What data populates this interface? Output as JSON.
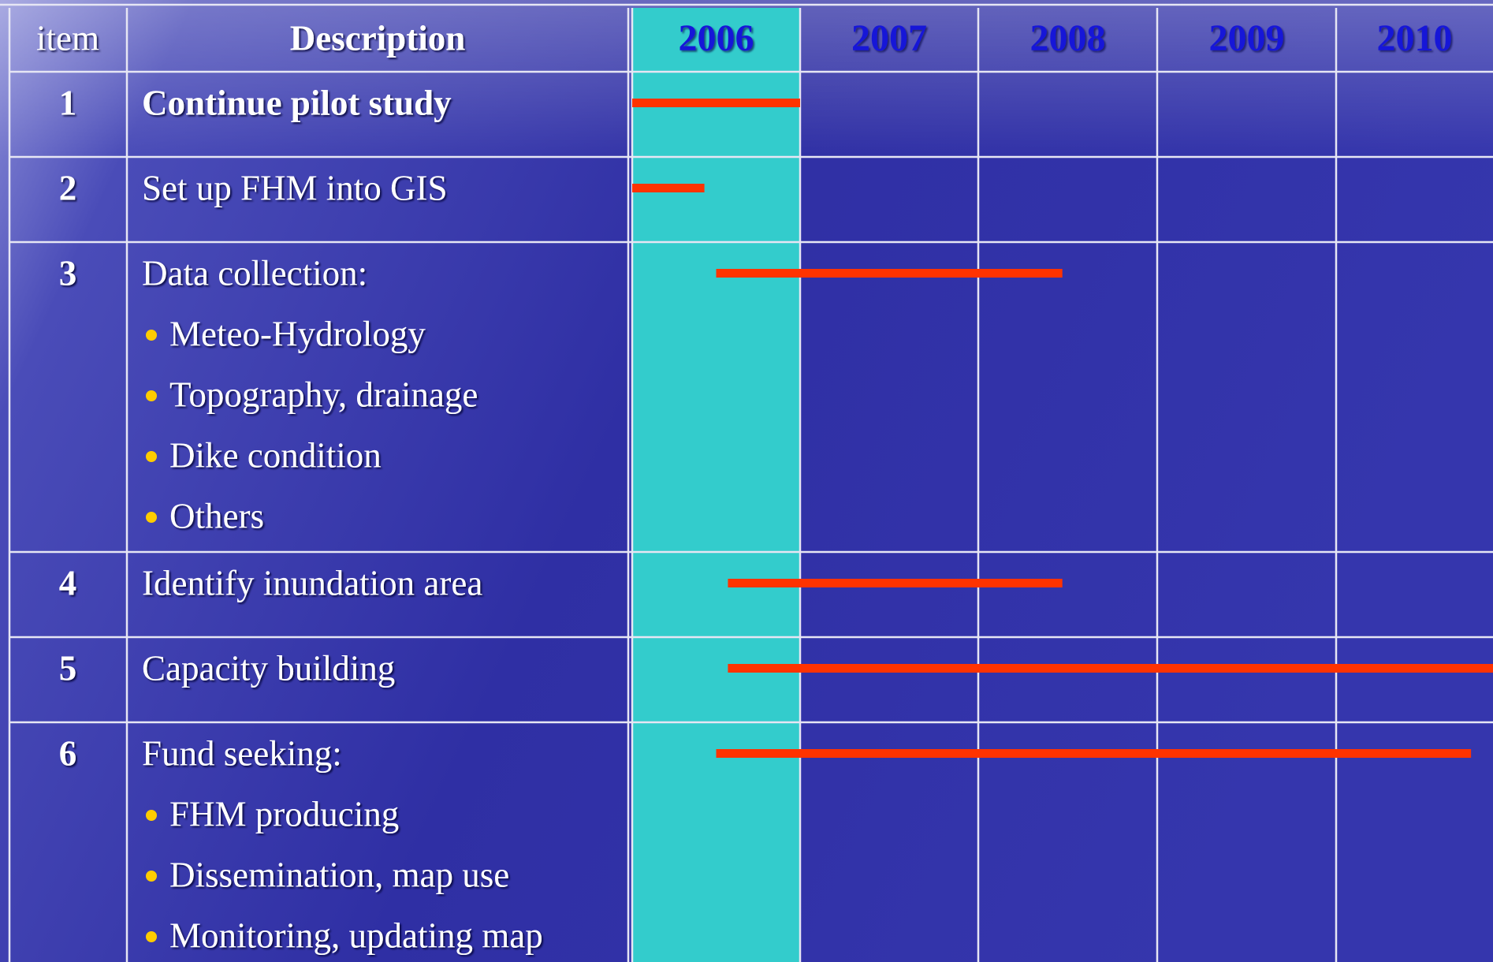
{
  "chart_data": {
    "type": "gantt",
    "item_header": "item",
    "description_header": "Description",
    "items": [
      1,
      2,
      3,
      4,
      5,
      6
    ],
    "descriptions": [
      "Continue pilot study",
      "Set up FHM into GIS",
      "Data collection:",
      "Identify inundation area",
      "Capacity building",
      "Fund seeking:"
    ],
    "bullets": [
      [],
      [],
      [
        "Meteo-Hydrology",
        "Topography, drainage",
        "Dike condition",
        "Others"
      ],
      [],
      [],
      [
        "FHM producing",
        "Dissemination, map use",
        "Monitoring, updating map"
      ]
    ],
    "start": [
      2006.0,
      2006.0,
      2006.5,
      2006.57,
      2006.57,
      2006.5
    ],
    "end": [
      2007.0,
      2006.43,
      2008.47,
      2008.47,
      2011.0,
      2010.86
    ],
    "xlim": [
      2006,
      2011
    ],
    "xticks": [
      2006,
      2007,
      2008,
      2009,
      2010
    ],
    "color": "#ff3300"
  }
}
